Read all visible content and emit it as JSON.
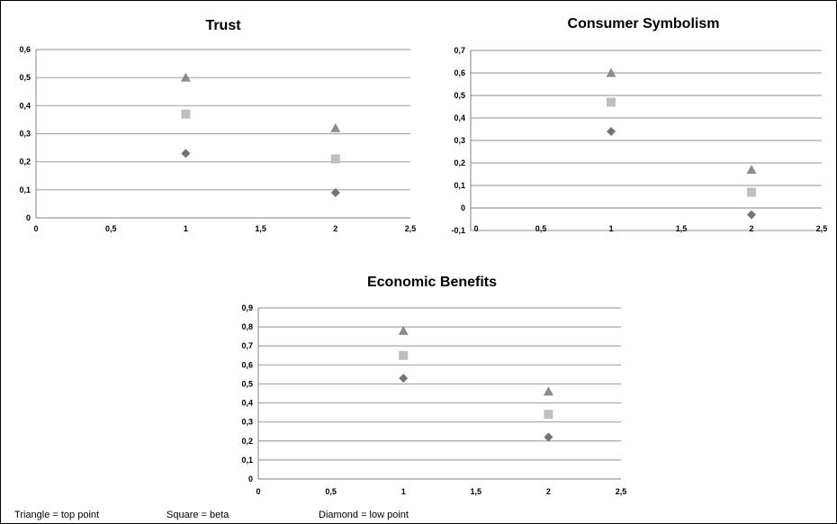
{
  "chart_data": [
    {
      "type": "scatter",
      "title": "Trust",
      "xlim": [
        0,
        2.5
      ],
      "ylim": [
        0,
        0.6
      ],
      "xticks": [
        "0",
        "0,5",
        "1",
        "1,5",
        "2",
        "2,5"
      ],
      "yticks": [
        "0",
        "0,1",
        "0,2",
        "0,3",
        "0,4",
        "0,5",
        "0,6"
      ],
      "series": [
        {
          "marker": "triangle",
          "points": [
            {
              "x": 1,
              "y": 0.5
            },
            {
              "x": 2,
              "y": 0.32
            }
          ]
        },
        {
          "marker": "square",
          "points": [
            {
              "x": 1,
              "y": 0.37
            },
            {
              "x": 2,
              "y": 0.21
            }
          ]
        },
        {
          "marker": "diamond",
          "points": [
            {
              "x": 1,
              "y": 0.23
            },
            {
              "x": 2,
              "y": 0.09
            }
          ]
        }
      ],
      "grid": true
    },
    {
      "type": "scatter",
      "title": "Consumer Symbolism",
      "xlim": [
        0,
        2.5
      ],
      "ylim": [
        -0.1,
        0.7
      ],
      "xticks": [
        "0",
        "0,5",
        "1",
        "1,5",
        "2",
        "2,5"
      ],
      "yticks": [
        "-0,1",
        "0",
        "0,1",
        "0,2",
        "0,3",
        "0,4",
        "0,5",
        "0,6",
        "0,7"
      ],
      "series": [
        {
          "marker": "triangle",
          "points": [
            {
              "x": 1,
              "y": 0.6
            },
            {
              "x": 2,
              "y": 0.17
            }
          ]
        },
        {
          "marker": "square",
          "points": [
            {
              "x": 1,
              "y": 0.47
            },
            {
              "x": 2,
              "y": 0.07
            }
          ]
        },
        {
          "marker": "diamond",
          "points": [
            {
              "x": 1,
              "y": 0.34
            },
            {
              "x": 2,
              "y": -0.03
            }
          ]
        }
      ],
      "grid": true
    },
    {
      "type": "scatter",
      "title": "Economic Benefits",
      "xlim": [
        0,
        2.5
      ],
      "ylim": [
        0,
        0.9
      ],
      "xticks": [
        "0",
        "0,5",
        "1",
        "1,5",
        "2",
        "2,5"
      ],
      "yticks": [
        "0",
        "0,1",
        "0,2",
        "0,3",
        "0,4",
        "0,5",
        "0,6",
        "0,7",
        "0,8",
        "0,9"
      ],
      "series": [
        {
          "marker": "triangle",
          "points": [
            {
              "x": 1,
              "y": 0.78
            },
            {
              "x": 2,
              "y": 0.46
            }
          ]
        },
        {
          "marker": "square",
          "points": [
            {
              "x": 1,
              "y": 0.65
            },
            {
              "x": 2,
              "y": 0.34
            }
          ]
        },
        {
          "marker": "diamond",
          "points": [
            {
              "x": 1,
              "y": 0.53
            },
            {
              "x": 2,
              "y": 0.22
            }
          ]
        }
      ],
      "grid": true
    }
  ],
  "legend": {
    "triangle": "Triangle = top point",
    "square": "Square = beta",
    "diamond": "Diamond = low point"
  },
  "colors": {
    "triangle": "#8c8c8c",
    "square": "#bfbfbf",
    "diamond": "#737373",
    "grid": "#a6a6a6"
  }
}
